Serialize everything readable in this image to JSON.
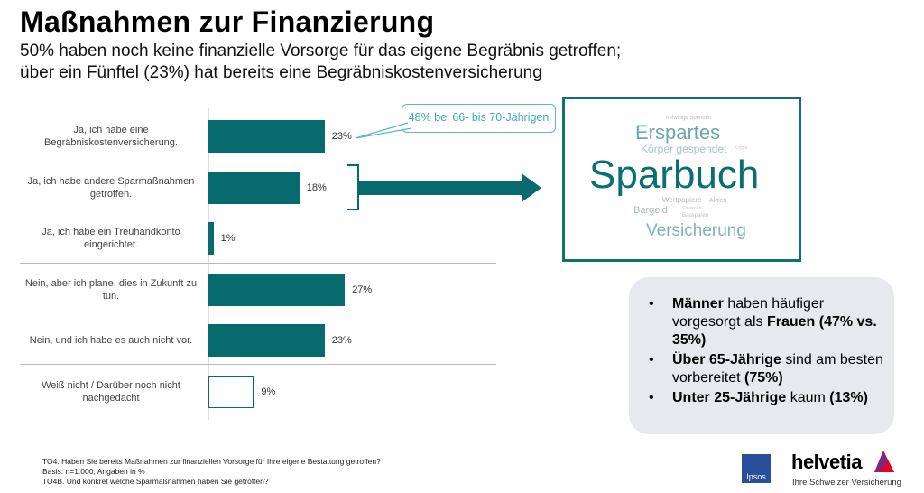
{
  "title": "Maßnahmen zur Finanzierung",
  "subtitle": [
    "50% haben noch keine finanzielle Vorsorge für das eigene Begräbnis getroffen;",
    "über ein Fünftel (23%) hat bereits eine Begräbniskostenversicherung"
  ],
  "chart_data": {
    "type": "bar",
    "orientation": "horizontal",
    "categories": [
      "Ja, ich habe eine Begräbniskostenversicherung.",
      "Ja, ich habe andere Sparmaßnahmen getroffen.",
      "Ja, ich habe ein Treuhandkonto eingerichtet.",
      "Nein, aber ich plane, dies in Zukunft zu tun.",
      "Nein, und ich habe es auch nicht vor.",
      "Weiß nicht / Darüber noch nicht nachgedacht"
    ],
    "values": [
      23,
      18,
      1,
      27,
      23,
      9
    ],
    "labels": [
      "23%",
      "18%",
      "1%",
      "27%",
      "23%",
      "9%"
    ],
    "unit": "%",
    "color": "#066a6e",
    "annotation": "48% bei 66- bis 70-Jährigen"
  },
  "wordcloud": [
    "freiwillige Spenden",
    "Erspartes",
    "Körper gespendet",
    "Krypto",
    "Sparbuch",
    "Wertpapiere",
    "Aktien",
    "Bargeld",
    "Sparkonto",
    "Bausparen",
    "Versicherung"
  ],
  "info": [
    [
      {
        "t": "Männer",
        "b": true
      },
      {
        "t": " haben häufiger vorgesorgt als "
      },
      {
        "t": "Frauen",
        "b": true
      },
      {
        "t": " "
      },
      {
        "t": "(47% vs. 35%)",
        "b": true
      }
    ],
    [
      {
        "t": "Über 65-Jährige",
        "b": true
      },
      {
        "t": " sind am besten vorbereitet "
      },
      {
        "t": "(75%)",
        "b": true
      }
    ],
    [
      {
        "t": "Unter 25-Jährige",
        "b": true
      },
      {
        "t": " kaum "
      },
      {
        "t": "(13%)",
        "b": true
      }
    ]
  ],
  "footnotes": [
    "TO4. Haben Sie bereits Maßnahmen zur finanziellen Vorsorge für Ihre eigene Bestattung getroffen?",
    "Basis: n=1.000, Angaben in %",
    "TO4B. Und konkret welche Sparmaßnahmen haben Sie getroffen?"
  ],
  "logos": {
    "ipsos": "Ipsos",
    "helvetia": "helvetia",
    "helvetia_tagline": "Ihre Schweizer Versicherung"
  }
}
